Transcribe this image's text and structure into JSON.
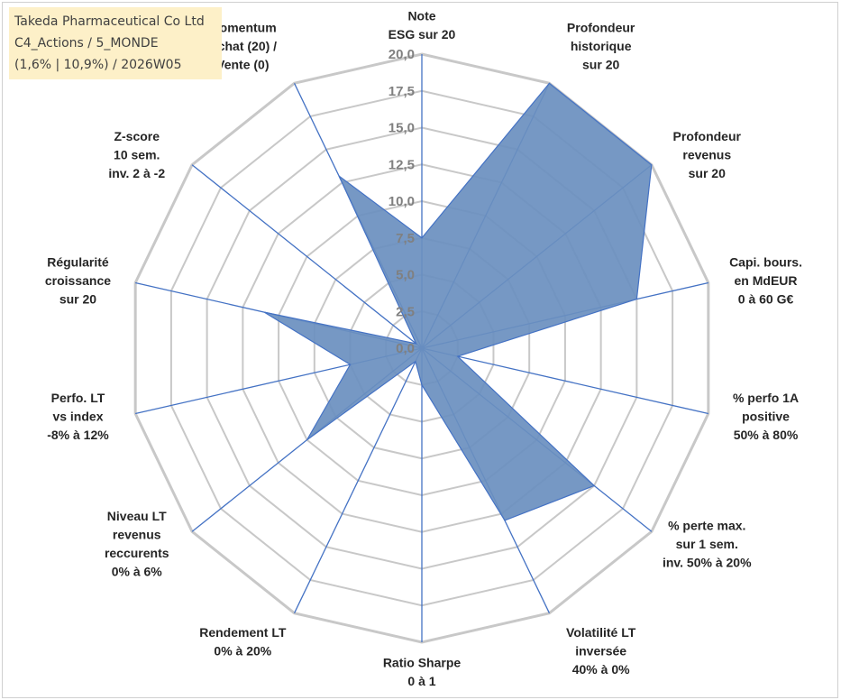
{
  "title": {
    "line1": "Takeda Pharmaceutical Co Ltd",
    "line2": "C4_Actions / 5_MONDE",
    "line3": "(1,6% | 10,9%) / 2026W05"
  },
  "chart_data": {
    "type": "radar",
    "rmin": 0,
    "rmax": 20,
    "ticks": [
      "0,0",
      "2,5",
      "5,0",
      "7,5",
      "10,0",
      "12,5",
      "15,0",
      "17,5",
      "20,0"
    ],
    "tick_values": [
      0,
      2.5,
      5,
      7.5,
      10,
      12.5,
      15,
      17.5,
      20
    ],
    "fill_color": "#6a8fbf",
    "line_color": "#4472c4",
    "grid_color": "#c8c8c8",
    "axes": [
      {
        "label": [
          "Note",
          "ESG sur 20"
        ],
        "value": 7.5
      },
      {
        "label": [
          "Profondeur",
          "historique",
          "sur 20"
        ],
        "value": 20
      },
      {
        "label": [
          "Profondeur",
          "revenus",
          "sur 20"
        ],
        "value": 20
      },
      {
        "label": [
          "Capi. bours.",
          "en MdEUR",
          "0 à 60 G€"
        ],
        "value": 15
      },
      {
        "label": [
          "% perfo 1A",
          "positive",
          "50% à 80%"
        ],
        "value": 2.5
      },
      {
        "label": [
          "% perte max.",
          "sur 1 sem.",
          "inv. 50% à 20%"
        ],
        "value": 15
      },
      {
        "label": [
          "Volatilité LT",
          "inversée",
          "40% à 0%"
        ],
        "value": 13
      },
      {
        "label": [
          "Ratio Sharpe",
          "0 à 1"
        ],
        "value": 2.5
      },
      {
        "label": [
          "Rendement LT",
          "0% à 20%"
        ],
        "value": 1
      },
      {
        "label": [
          "Niveau LT",
          "revenus",
          "reccurents",
          "0% à 6%"
        ],
        "value": 10
      },
      {
        "label": [
          "Perfo. LT",
          "vs index",
          "-8% à 12%"
        ],
        "value": 5
      },
      {
        "label": [
          "Régularité",
          "croissance",
          "sur 20"
        ],
        "value": 11
      },
      {
        "label": [
          "Z-score",
          "10 sem.",
          "inv. 2 à -2"
        ],
        "value": 0.5
      },
      {
        "label": [
          "Momentum",
          "Achat (20) /",
          "Vente (0)"
        ],
        "value": 13
      }
    ]
  }
}
